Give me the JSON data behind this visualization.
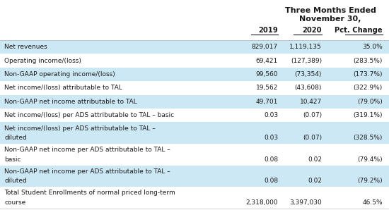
{
  "header_line1": "Three Months Ended",
  "header_line2": "November 30,",
  "col_headers": [
    "2019",
    "2020",
    "Pct. Change"
  ],
  "rows": [
    {
      "label_lines": [
        "Net revenues"
      ],
      "values": [
        "829,017",
        "1,119,135",
        "35.0%"
      ],
      "shaded": true
    },
    {
      "label_lines": [
        "Operating income/(loss)"
      ],
      "values": [
        "69,421",
        "(127,389)",
        "(283.5%)"
      ],
      "shaded": false
    },
    {
      "label_lines": [
        "Non-GAAP operating income/(loss)"
      ],
      "values": [
        "99,560",
        "(73,354)",
        "(173.7%)"
      ],
      "shaded": true
    },
    {
      "label_lines": [
        "Net income/(loss) attributable to TAL"
      ],
      "values": [
        "19,562",
        "(43,608)",
        "(322.9%)"
      ],
      "shaded": false
    },
    {
      "label_lines": [
        "Non-GAAP net income attributable to TAL"
      ],
      "values": [
        "49,701",
        "10,427",
        "(79.0%)"
      ],
      "shaded": true
    },
    {
      "label_lines": [
        "Net income/(loss) per ADS attributable to TAL – basic"
      ],
      "values": [
        "0.03",
        "(0.07)",
        "(319.1%)"
      ],
      "shaded": false
    },
    {
      "label_lines": [
        "Net income/(loss) per ADS attributable to TAL –",
        "diluted"
      ],
      "values": [
        "0.03",
        "(0.07)",
        "(328.5%)"
      ],
      "shaded": true
    },
    {
      "label_lines": [
        "Non-GAAP net income per ADS attributable to TAL –",
        "basic"
      ],
      "values": [
        "0.08",
        "0.02",
        "(79.4%)"
      ],
      "shaded": false
    },
    {
      "label_lines": [
        "Non-GAAP net income per ADS attributable to TAL –",
        "diluted"
      ],
      "values": [
        "0.08",
        "0.02",
        "(79.2%)"
      ],
      "shaded": true
    },
    {
      "label_lines": [
        "Total Student Enrollments of normal priced long-term",
        "course"
      ],
      "values": [
        "2,318,000",
        "3,397,030",
        "46.5%"
      ],
      "shaded": false
    }
  ],
  "shaded_color": "#cde8f5",
  "white_color": "#ffffff",
  "text_color": "#1a1a1a",
  "font_size": 6.5,
  "header_font_size": 8.0,
  "col_header_font_size": 7.2,
  "fig_width": 5.5,
  "fig_height": 2.98,
  "dpi": 100
}
